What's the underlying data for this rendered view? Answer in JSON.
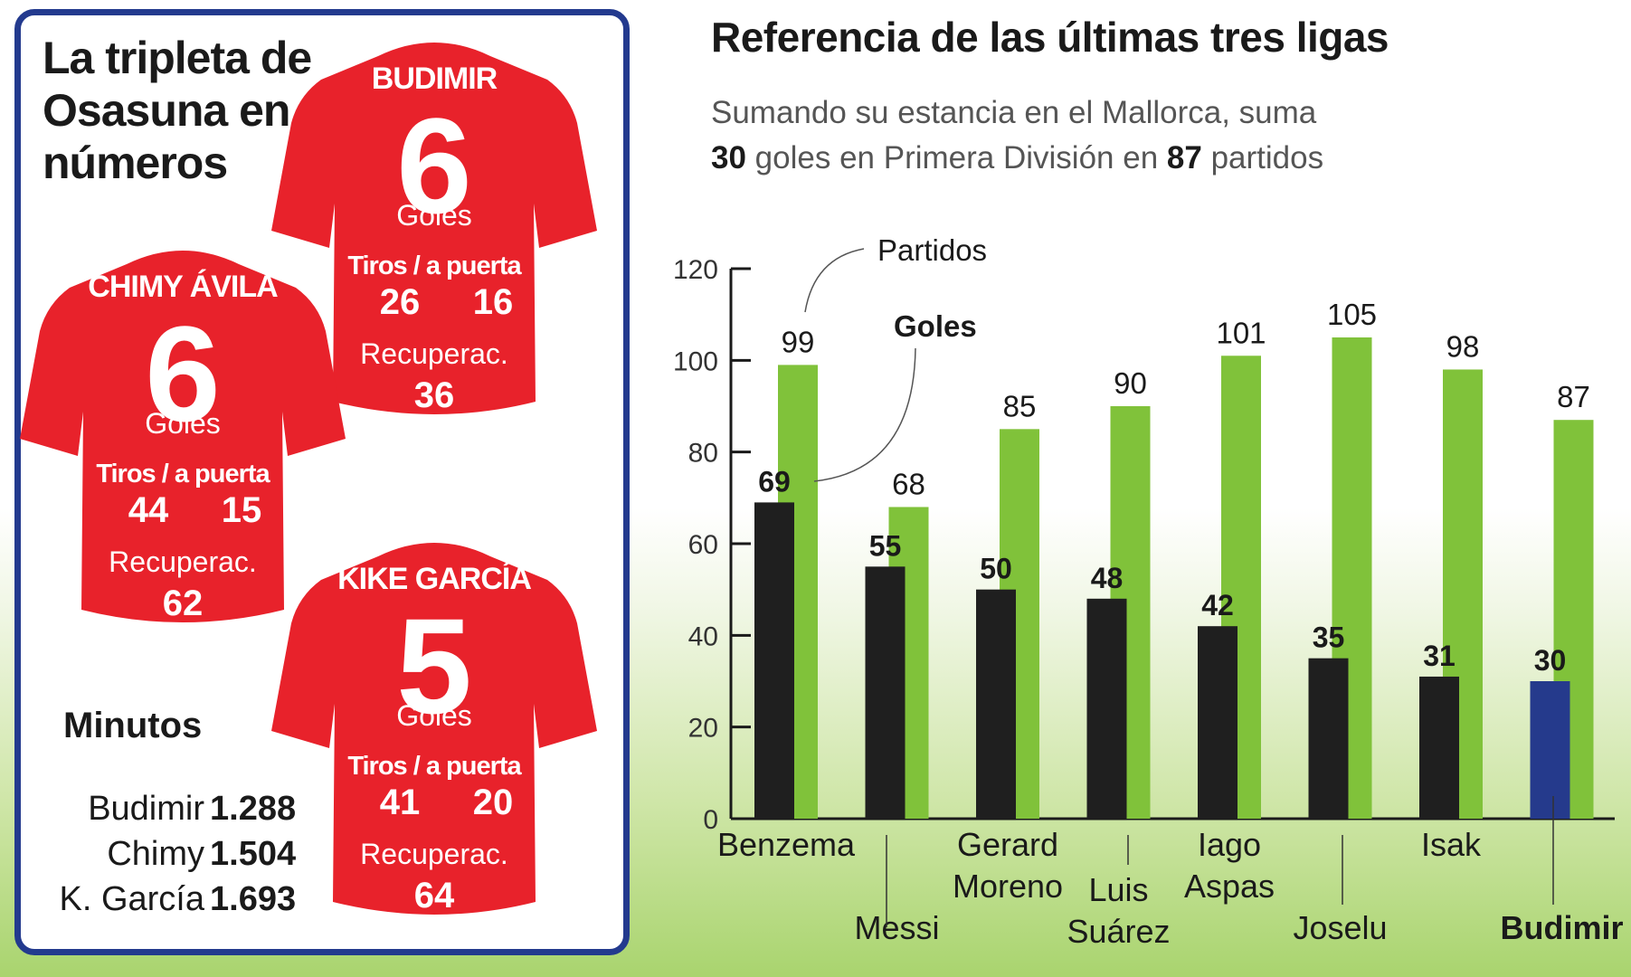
{
  "left_panel": {
    "title": "La tripleta de Osasuna en números",
    "players": [
      {
        "name": "BUDIMIR",
        "goals": "6",
        "goals_label": "Goles",
        "shots_label": "Tiros / a puerta",
        "shots": "26",
        "on_target": "16",
        "recoveries_label": "Recuperac.",
        "recoveries": "36"
      },
      {
        "name": "CHIMY ÁVILA",
        "goals": "6",
        "goals_label": "Goles",
        "shots_label": "Tiros / a puerta",
        "shots": "44",
        "on_target": "15",
        "recoveries_label": "Recuperac.",
        "recoveries": "62"
      },
      {
        "name": "KIKE GARCÍA",
        "goals": "5",
        "goals_label": "Goles",
        "shots_label": "Tiros / a puerta",
        "shots": "41",
        "on_target": "20",
        "recoveries_label": "Recuperac.",
        "recoveries": "64"
      }
    ],
    "minutes": {
      "title": "Minutos",
      "rows": [
        {
          "name": "Budimir",
          "value": "1.288"
        },
        {
          "name": "Chimy",
          "value": "1.504"
        },
        {
          "name": "K. García",
          "value": "1.693"
        }
      ]
    }
  },
  "colors": {
    "shirt": "#e8222b",
    "goles": "#1f1f1f",
    "partidos": "#80c23a",
    "highlight": "#253a8c",
    "border": "#233a8e"
  },
  "chart_data": {
    "type": "bar",
    "title": "Referencia de las últimas tres ligas",
    "subtitle_parts": {
      "p1": "Sumando su estancia en el Mallorca, suma",
      "goals": "30",
      "p2": "goles en Primera División en",
      "matches": "87",
      "p3": "partidos"
    },
    "categories": [
      "Benzema",
      "Messi",
      "Gerard Moreno",
      "Luis Suárez",
      "Iago Aspas",
      "Joselu",
      "Isak",
      "Budimir"
    ],
    "series": [
      {
        "name": "Goles",
        "values": [
          69,
          55,
          50,
          48,
          42,
          35,
          31,
          30
        ]
      },
      {
        "name": "Partidos",
        "values": [
          99,
          68,
          85,
          90,
          101,
          105,
          98,
          87
        ]
      }
    ],
    "highlight_category": "Budimir",
    "ylim": [
      0,
      120
    ],
    "yticks": [
      0,
      20,
      40,
      60,
      80,
      100,
      120
    ],
    "legend": "annotations near first bar"
  }
}
